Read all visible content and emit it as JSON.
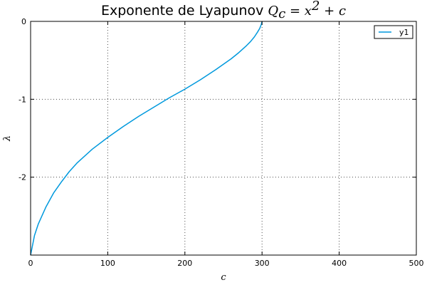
{
  "chart_data": {
    "type": "line",
    "title": "Exponente de Lyapunov Q_c = x^2 + c",
    "title_text": "Exponente de Lyapunov ",
    "title_math": "Q",
    "title_math_sub": "c",
    "title_math_rest": " = x",
    "title_math_sup": "2",
    "title_math_end": " + c",
    "xlabel": "c",
    "ylabel": "λ",
    "xlim": [
      0,
      500
    ],
    "ylim": [
      -3,
      0
    ],
    "xticks": [
      0,
      100,
      200,
      300,
      400,
      500
    ],
    "xtick_labels": [
      "0",
      "100",
      "200",
      "300",
      "400",
      "500"
    ],
    "yticks": [
      0,
      -1,
      -2
    ],
    "ytick_labels": [
      "0",
      "-1",
      "-2"
    ],
    "grid": true,
    "legend_position": "top-right",
    "series": [
      {
        "name": "y1",
        "color": "#0099dd",
        "x": [
          0,
          5,
          10,
          20,
          30,
          40,
          50,
          60,
          80,
          100,
          120,
          140,
          160,
          180,
          200,
          220,
          240,
          260,
          270,
          280,
          285,
          290,
          294,
          297,
          299,
          300
        ],
        "y": [
          -3.0,
          -2.75,
          -2.6,
          -2.38,
          -2.2,
          -2.06,
          -1.93,
          -1.82,
          -1.64,
          -1.49,
          -1.35,
          -1.22,
          -1.1,
          -0.98,
          -0.87,
          -0.75,
          -0.62,
          -0.48,
          -0.4,
          -0.31,
          -0.26,
          -0.2,
          -0.14,
          -0.09,
          -0.04,
          0.0
        ]
      }
    ]
  }
}
